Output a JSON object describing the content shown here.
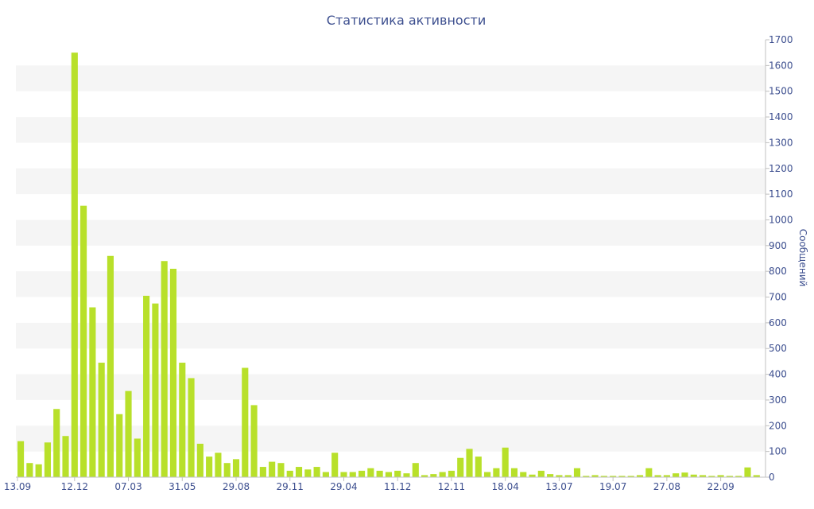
{
  "chart_data": {
    "type": "bar",
    "title": "Статистика активности",
    "xlabel": "",
    "ylabel": "Сообщений",
    "y_axis_side": "right",
    "ylim": [
      0,
      1700
    ],
    "y_ticks": [
      0,
      100,
      200,
      300,
      400,
      500,
      600,
      700,
      800,
      900,
      1000,
      1100,
      1200,
      1300,
      1400,
      1500,
      1600,
      1700
    ],
    "x_tick_labels": [
      {
        "label": "13.09",
        "index": 0
      },
      {
        "label": "12.12",
        "index": 6
      },
      {
        "label": "07.03",
        "index": 12
      },
      {
        "label": "31.05",
        "index": 18
      },
      {
        "label": "29.08",
        "index": 24
      },
      {
        "label": "29.11",
        "index": 30
      },
      {
        "label": "29.04",
        "index": 36
      },
      {
        "label": "11.12",
        "index": 42
      },
      {
        "label": "12.11",
        "index": 48
      },
      {
        "label": "18.04",
        "index": 54
      },
      {
        "label": "13.07",
        "index": 60
      },
      {
        "label": "19.07",
        "index": 66
      },
      {
        "label": "27.08",
        "index": 72
      },
      {
        "label": "22.09",
        "index": 78
      }
    ],
    "values": [
      140,
      55,
      50,
      135,
      265,
      160,
      1650,
      1055,
      660,
      445,
      860,
      245,
      335,
      150,
      705,
      675,
      840,
      810,
      445,
      385,
      130,
      80,
      95,
      55,
      70,
      425,
      280,
      40,
      60,
      55,
      25,
      40,
      30,
      40,
      20,
      95,
      20,
      20,
      25,
      35,
      25,
      20,
      25,
      15,
      55,
      8,
      12,
      20,
      25,
      75,
      110,
      80,
      20,
      35,
      115,
      35,
      20,
      10,
      25,
      12,
      8,
      8,
      35,
      5,
      8,
      5,
      5,
      5,
      5,
      8,
      35,
      8,
      8,
      15,
      18,
      10,
      8,
      5,
      8,
      5,
      5,
      38,
      8
    ],
    "bar_color": "#b8e02a",
    "band_color": "#f5f5f5",
    "grid": "alternating-bands",
    "legend": "none"
  }
}
